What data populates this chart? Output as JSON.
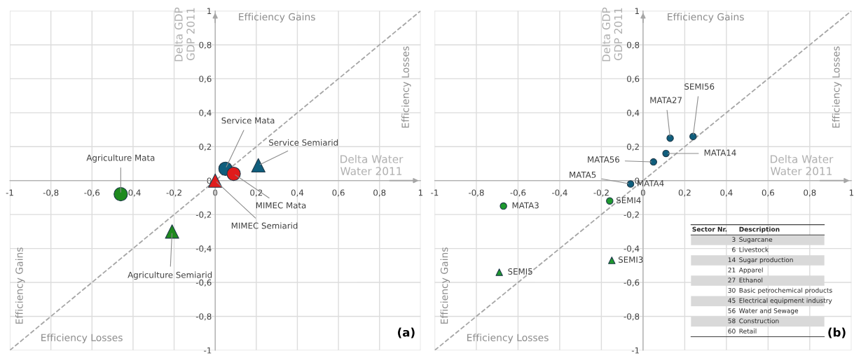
{
  "chart_data": [
    {
      "type": "scatter",
      "xlabel": "Delta Water\nWater 2011",
      "ylabel": "Delta GDP\nGDP 2011",
      "xlim": [
        -1,
        1
      ],
      "ylim": [
        -1,
        1
      ],
      "xticks": [
        {
          "value": -1,
          "label": "-1"
        },
        {
          "value": -0.8,
          "label": "-0,8"
        },
        {
          "value": -0.6,
          "label": "-0,6"
        },
        {
          "value": -0.4,
          "label": "-0,4"
        },
        {
          "value": -0.2,
          "label": "-0,2"
        },
        {
          "value": 0,
          "label": "0"
        },
        {
          "value": 0.2,
          "label": "0,2"
        },
        {
          "value": 0.4,
          "label": "0,4"
        },
        {
          "value": 0.6,
          "label": "0,6"
        },
        {
          "value": 0.8,
          "label": "0,8"
        },
        {
          "value": 1,
          "label": "1"
        }
      ],
      "yticks": [
        {
          "value": -1,
          "label": "-1"
        },
        {
          "value": -0.8,
          "label": "-0,8"
        },
        {
          "value": -0.6,
          "label": "-0,6"
        },
        {
          "value": -0.4,
          "label": "-0,4"
        },
        {
          "value": -0.2,
          "label": "-0,2"
        },
        {
          "value": 0,
          "label": "0"
        },
        {
          "value": 0.2,
          "label": "0,2"
        },
        {
          "value": 0.4,
          "label": "0,4"
        },
        {
          "value": 0.6,
          "label": "0,6"
        },
        {
          "value": 0.8,
          "label": "0,8"
        },
        {
          "value": 1,
          "label": "1"
        }
      ],
      "grid": true,
      "series": [
        {
          "type": "line",
          "color": "#a6a6a6",
          "line_style": "dashed",
          "x": [
            -1,
            1
          ],
          "values": [
            -1,
            1
          ]
        },
        {
          "color": "#1e8a1e",
          "marker": "circle",
          "x": [
            -0.46
          ],
          "values": [
            -0.08
          ]
        },
        {
          "color": "#1e8a1e",
          "marker": "triangle",
          "x": [
            -0.21
          ],
          "values": [
            -0.3
          ]
        },
        {
          "color": "#0f5e7d",
          "marker": "circle",
          "x": [
            0.05
          ],
          "values": [
            0.07
          ]
        },
        {
          "color": "#0f5e7d",
          "marker": "triangle",
          "x": [
            0.21
          ],
          "values": [
            0.09
          ]
        },
        {
          "color": "#e01b1b",
          "marker": "circle",
          "x": [
            0.09
          ],
          "values": [
            0.04
          ]
        },
        {
          "color": "#e01b1b",
          "marker": "triangle",
          "x": [
            0
          ],
          "values": [
            0
          ]
        }
      ],
      "annotations": [
        "Efficiency Gains",
        "Efficiency Losses",
        "Efficiency Gains",
        "Efficiency Losses",
        "(a)",
        {
          "text": "Agriculture Mata",
          "x": -0.46,
          "y": -0.08
        },
        {
          "text": "Agriculture Semiarid",
          "x": -0.21,
          "y": -0.3
        },
        {
          "text": "Service Mata",
          "x": 0.05,
          "y": 0.07
        },
        {
          "text": "Service Semiarid",
          "x": 0.21,
          "y": 0.09
        },
        {
          "text": "MIMEC Mata",
          "x": 0.09,
          "y": 0.04
        },
        {
          "text": "MIMEC Semiarid",
          "x": 0,
          "y": 0
        }
      ]
    },
    {
      "type": "scatter",
      "xlabel": "Delta Water\nWater 2011",
      "ylabel": "Delta GDP\nGDP 2011",
      "xlim": [
        -1,
        1
      ],
      "ylim": [
        -1,
        1
      ],
      "xticks": [
        {
          "value": -1,
          "label": "-1"
        },
        {
          "value": -0.8,
          "label": "-0,8"
        },
        {
          "value": -0.6,
          "label": "-0,6"
        },
        {
          "value": -0.4,
          "label": "-0,4"
        },
        {
          "value": -0.2,
          "label": "-0,2"
        },
        {
          "value": 0,
          "label": "0"
        },
        {
          "value": 0.2,
          "label": "0,2"
        },
        {
          "value": 0.4,
          "label": "0,4"
        },
        {
          "value": 0.6,
          "label": "0,6"
        },
        {
          "value": 0.8,
          "label": "0,8"
        },
        {
          "value": 1,
          "label": "1"
        }
      ],
      "yticks": [
        {
          "value": -1,
          "label": "-1"
        },
        {
          "value": -0.8,
          "label": "-0,8"
        },
        {
          "value": -0.6,
          "label": "-0,6"
        },
        {
          "value": -0.4,
          "label": "-0,4"
        },
        {
          "value": -0.2,
          "label": "-0,2"
        },
        {
          "value": 0,
          "label": "0"
        },
        {
          "value": 0.2,
          "label": "0,2"
        },
        {
          "value": 0.4,
          "label": "0,4"
        },
        {
          "value": 0.6,
          "label": "0,6"
        },
        {
          "value": 0.8,
          "label": "0,8"
        },
        {
          "value": 1,
          "label": "1"
        }
      ],
      "grid": true,
      "series": [
        {
          "type": "line",
          "color": "#a6a6a6",
          "line_style": "dashed",
          "x": [
            -1,
            1
          ],
          "values": [
            -1,
            1
          ]
        },
        {
          "color": "#0f5e7d",
          "marker": "circle",
          "x": [
            0.13,
            0.24,
            0.11,
            0.05,
            -0.06
          ],
          "values": [
            0.25,
            0.26,
            0.16,
            0.11,
            -0.02
          ]
        },
        {
          "color": "#1e9a2e",
          "marker": "circle",
          "x": [
            -0.67,
            -0.16
          ],
          "values": [
            -0.15,
            -0.12
          ]
        },
        {
          "color": "#1e9a2e",
          "marker": "triangle",
          "x": [
            -0.15,
            -0.69
          ],
          "values": [
            -0.47,
            -0.54
          ]
        }
      ],
      "annotations": [
        "Efficiency Gains",
        "Efficiency Losses",
        "Efficiency Gains",
        "Efficiency Losses",
        "(b)",
        "Sector Nr.",
        "Description",
        "3",
        "Sugarcane",
        "6",
        "Livestock",
        "14",
        "Sugar production",
        "21",
        "Apparel",
        "27",
        "Ethanol",
        "30",
        "Basic petrochemical products",
        "45",
        "Electrical equipment industry",
        "56",
        "Water and Sewage",
        "58",
        "Construction",
        "60",
        "Retail",
        {
          "text": "MATA27",
          "x": 0.13,
          "y": 0.25
        },
        {
          "text": "SEMI56",
          "x": 0.24,
          "y": 0.26
        },
        {
          "text": "MATA14",
          "x": 0.11,
          "y": 0.16
        },
        {
          "text": "MATA56",
          "x": 0.05,
          "y": 0.11
        },
        {
          "text": "MATA5",
          "x": -0.06,
          "y": -0.02
        },
        {
          "text": "MATA4",
          "x": -0.06,
          "y": -0.02
        },
        {
          "text": "MATA3",
          "x": -0.67,
          "y": -0.15
        },
        {
          "text": "SEMI4",
          "x": -0.16,
          "y": -0.12
        },
        {
          "text": "SEMI3",
          "x": -0.15,
          "y": -0.47
        },
        {
          "text": "SEMI5",
          "x": -0.69,
          "y": -0.54
        }
      ]
    }
  ]
}
